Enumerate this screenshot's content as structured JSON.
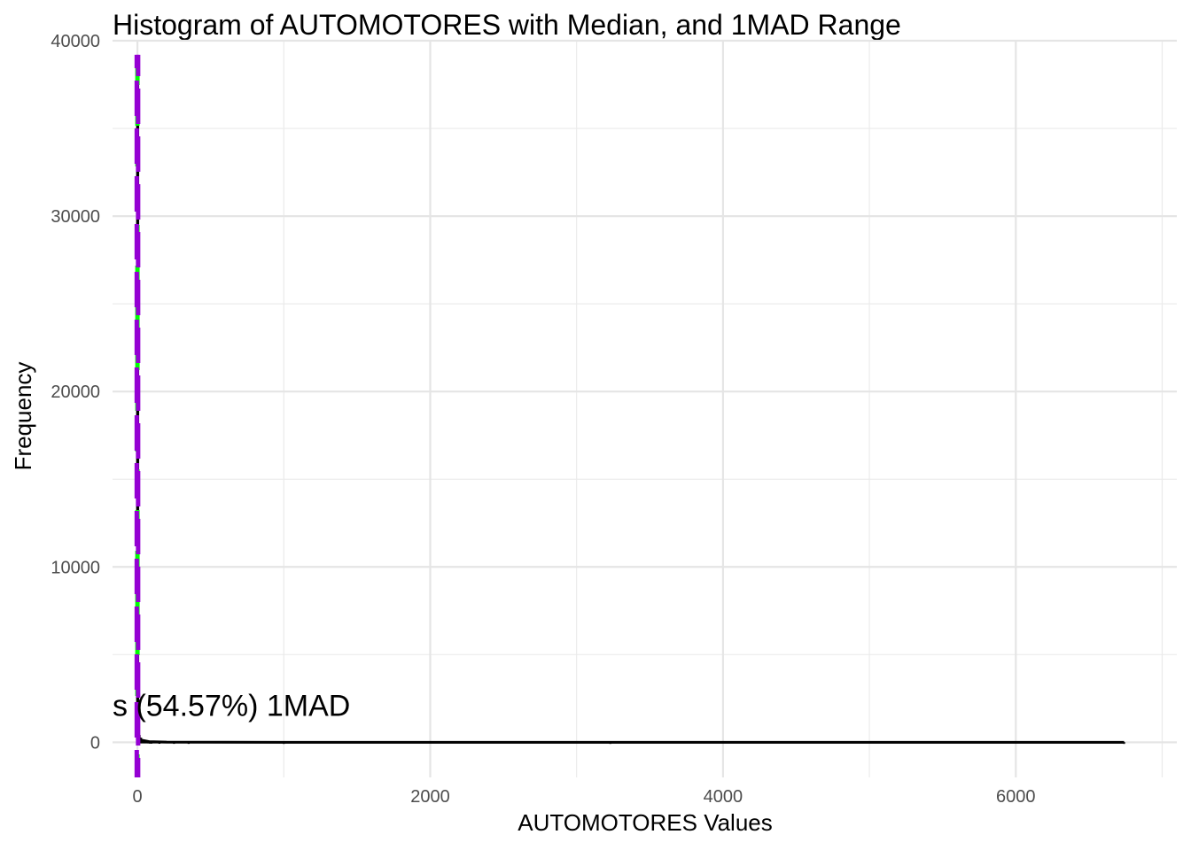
{
  "chart_data": {
    "type": "histogram",
    "title": "Histogram of AUTOMOTORES with Median, and 1MAD Range",
    "xlabel": "AUTOMOTORES Values",
    "ylabel": "Frequency",
    "xlim": [
      -170,
      7100
    ],
    "ylim": [
      -2000,
      40000
    ],
    "x_ticks": [
      0,
      2000,
      4000,
      6000
    ],
    "y_ticks": [
      0,
      10000,
      20000,
      30000,
      40000
    ],
    "grid": true,
    "bins": {
      "binwidth": 10,
      "x": [
        5,
        15,
        25,
        35,
        45,
        55,
        65,
        75,
        85,
        95,
        150,
        250,
        350,
        1000,
        3230,
        6740
      ],
      "counts": [
        39000,
        400,
        250,
        150,
        100,
        60,
        40,
        30,
        20,
        15,
        8,
        5,
        3,
        1,
        1,
        1
      ]
    },
    "reference_lines": [
      {
        "name": "median",
        "x": 0,
        "color": "#00ff00",
        "style": "dashed"
      },
      {
        "name": "1MAD-lower",
        "x": -1,
        "color": "#9400d3",
        "style": "dashed"
      },
      {
        "name": "1MAD-upper",
        "x": 1,
        "color": "#9400d3",
        "style": "dashed"
      }
    ],
    "density_curve_color": "#000000",
    "annotation": {
      "text": "s (54.57%) 1MAD",
      "x": -170,
      "y": 1500
    }
  }
}
